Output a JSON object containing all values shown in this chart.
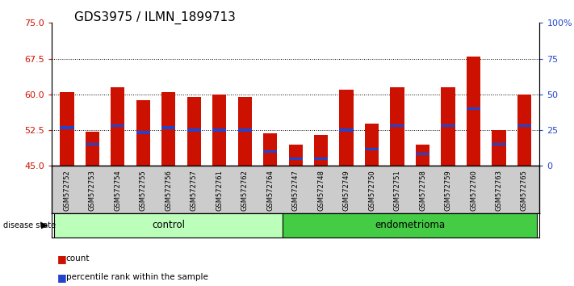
{
  "title": "GDS3975 / ILMN_1899713",
  "samples": [
    "GSM572752",
    "GSM572753",
    "GSM572754",
    "GSM572755",
    "GSM572756",
    "GSM572757",
    "GSM572761",
    "GSM572762",
    "GSM572764",
    "GSM572747",
    "GSM572748",
    "GSM572749",
    "GSM572750",
    "GSM572751",
    "GSM572758",
    "GSM572759",
    "GSM572760",
    "GSM572763",
    "GSM572765"
  ],
  "bar_values": [
    60.5,
    52.2,
    61.5,
    58.8,
    60.5,
    59.5,
    60.0,
    59.5,
    51.8,
    49.5,
    51.5,
    61.0,
    53.8,
    61.5,
    49.5,
    61.5,
    68.0,
    52.5,
    60.0
  ],
  "blue_marker_values": [
    53.0,
    49.5,
    53.5,
    52.0,
    53.0,
    52.5,
    52.5,
    52.5,
    48.0,
    46.5,
    46.5,
    52.5,
    48.5,
    53.5,
    47.5,
    53.5,
    57.0,
    49.5,
    53.5
  ],
  "group_sizes": [
    9,
    10
  ],
  "ylim_left": [
    45,
    75
  ],
  "ylim_right": [
    0,
    100
  ],
  "yticks_left": [
    45,
    52.5,
    60,
    67.5,
    75
  ],
  "yticks_right": [
    0,
    25,
    50,
    75,
    100
  ],
  "bar_color": "#cc1100",
  "blue_color": "#2244cc",
  "control_bg": "#bbffbb",
  "endometrioma_bg": "#44cc44",
  "tick_area_bg": "#cccccc",
  "title_fontsize": 11,
  "axis_label_color_left": "#cc1100",
  "axis_label_color_right": "#2244cc"
}
